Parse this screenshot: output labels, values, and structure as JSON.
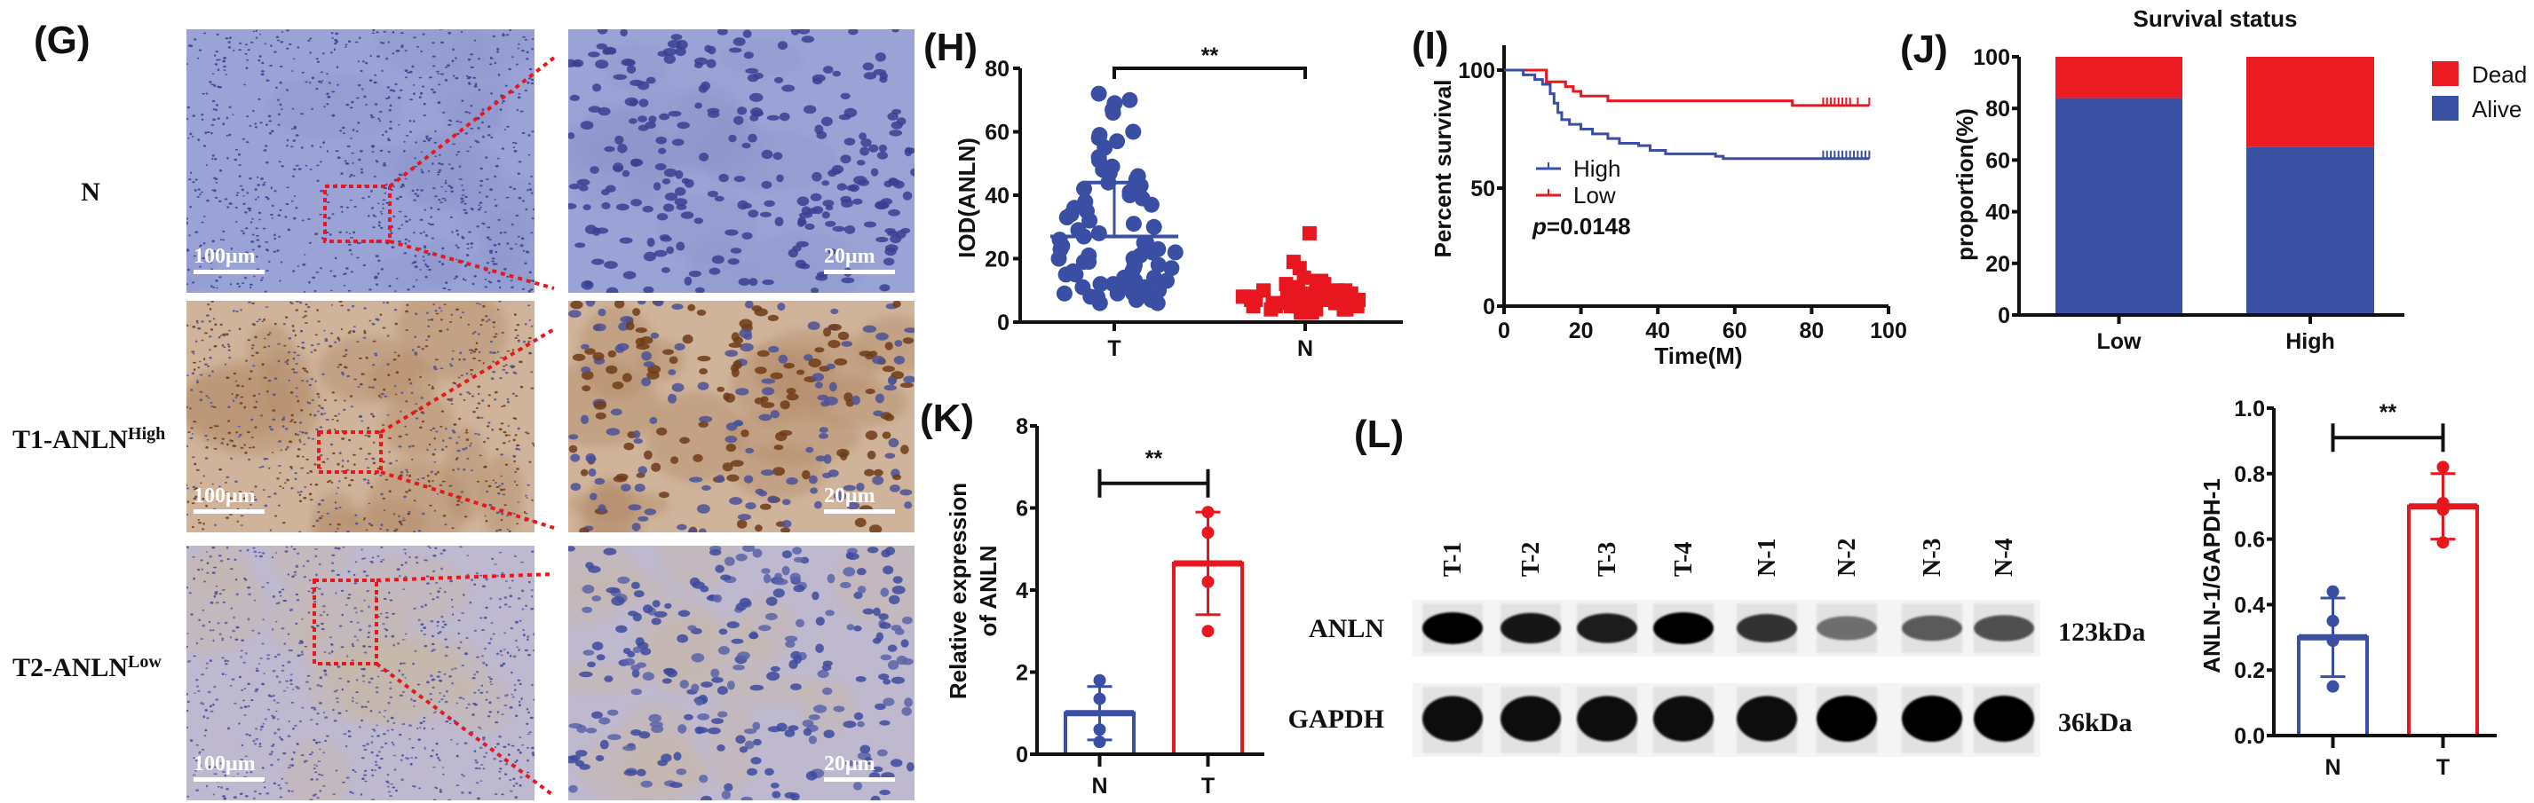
{
  "figure": {
    "G": {
      "label": "(G)",
      "rows": [
        {
          "label": "N",
          "sup": "",
          "tint": "#9ba3d6",
          "nucleus": "#3a3f92",
          "nucleus2": "#3a3f92",
          "stroma": "#8e96cc"
        },
        {
          "label": "T1-ANLN",
          "sup": "High",
          "tint": "#cfb39a",
          "nucleus": "#6e3b17",
          "nucleus2": "#4b5199",
          "stroma": "#b48c6b"
        },
        {
          "label": "T2-ANLN",
          "sup": "Low",
          "tint": "#bfb9cf",
          "nucleus": "#3d4a9e",
          "nucleus2": "#5a63a8",
          "stroma": "#c8b7a8"
        }
      ],
      "scale_low": "100μm",
      "scale_high": "20μm",
      "zoom_color": "#e8171f"
    },
    "H": {
      "label": "(H)"
    },
    "I": {
      "label": "(I)"
    },
    "J": {
      "label": "(J)"
    },
    "K": {
      "label": "(K)"
    },
    "L": {
      "label": "(L)",
      "lanes": [
        "T-1",
        "T-2",
        "T-3",
        "T-4",
        "N-1",
        "N-2",
        "N-3",
        "N-4"
      ],
      "bands": [
        {
          "name": "ANLN",
          "size": "123kDa",
          "intensity": [
            1.0,
            0.9,
            0.85,
            1.0,
            0.75,
            0.45,
            0.55,
            0.6
          ]
        },
        {
          "name": "GAPDH",
          "size": "36kDa",
          "intensity": [
            0.95,
            0.95,
            0.95,
            0.95,
            0.95,
            1.0,
            1.0,
            1.0
          ]
        }
      ]
    }
  },
  "colors": {
    "blue": "#3a4fa3",
    "red": "#e8171f",
    "black": "#111111"
  },
  "chart_data": [
    {
      "panel": "H",
      "type": "scatter",
      "ylabel": "IOD(ANLN)",
      "categories": [
        "T",
        "N"
      ],
      "ylim": [
        0,
        80
      ],
      "yticks": [
        "0",
        "20",
        "40",
        "60",
        "80"
      ],
      "significance": "**",
      "series": [
        {
          "name": "T",
          "color": "#3a4fa3",
          "mean": 27,
          "sd_upper": 44,
          "values": [
            72,
            70,
            69,
            67,
            66,
            60,
            59,
            58,
            57,
            55,
            52,
            51,
            49,
            48,
            47,
            46,
            45,
            44,
            43,
            42,
            41,
            40,
            39,
            38,
            37,
            36,
            35,
            34,
            33,
            32,
            31,
            30,
            29,
            28,
            27,
            26,
            25,
            25,
            24,
            23,
            23,
            22,
            22,
            21,
            21,
            20,
            20,
            19,
            19,
            18,
            18,
            17,
            17,
            16,
            16,
            15,
            15,
            14,
            14,
            13,
            13,
            12,
            12,
            12,
            11,
            11,
            11,
            10,
            10,
            10,
            9,
            9,
            9,
            8,
            8,
            8,
            7,
            7,
            6,
            6
          ]
        },
        {
          "name": "N",
          "color": "#e8171f",
          "mean": 7,
          "values": [
            28,
            19,
            17,
            14,
            13,
            13,
            12,
            12,
            11,
            11,
            11,
            10,
            10,
            10,
            10,
            9,
            9,
            9,
            9,
            9,
            9,
            8,
            8,
            8,
            8,
            8,
            8,
            8,
            8,
            7,
            7,
            7,
            7,
            7,
            7,
            7,
            7,
            7,
            6,
            6,
            6,
            6,
            6,
            6,
            6,
            6,
            6,
            5,
            5,
            5,
            5,
            5,
            5,
            5,
            5,
            4,
            4,
            4,
            4,
            4,
            4,
            3,
            3,
            3
          ]
        }
      ]
    },
    {
      "panel": "I",
      "type": "line",
      "xlabel": "Time(M)",
      "ylabel": "Percent survival",
      "xlim": [
        0,
        100
      ],
      "ylim": [
        0,
        100
      ],
      "xticks": [
        "0",
        "20",
        "40",
        "60",
        "80",
        "100"
      ],
      "yticks": [
        "0",
        "50",
        "100"
      ],
      "p_prefix": "p",
      "p_value": "=0.0148",
      "series": [
        {
          "name": "High",
          "color": "#3a4fa3",
          "steps": [
            [
              0,
              100
            ],
            [
              5,
              98
            ],
            [
              8,
              96
            ],
            [
              10,
              94
            ],
            [
              12,
              90
            ],
            [
              13,
              86
            ],
            [
              14,
              82
            ],
            [
              15,
              79
            ],
            [
              17,
              77
            ],
            [
              20,
              75
            ],
            [
              23,
              73
            ],
            [
              27,
              71
            ],
            [
              30,
              69
            ],
            [
              35,
              68
            ],
            [
              38,
              66
            ],
            [
              42,
              64.5
            ],
            [
              55,
              63.5
            ],
            [
              57,
              62.5
            ],
            [
              95,
              62.5
            ]
          ],
          "censored": [
            83,
            84,
            85,
            86,
            87,
            88,
            89,
            90,
            91,
            92,
            93,
            94,
            95
          ]
        },
        {
          "name": "Low",
          "color": "#e8171f",
          "steps": [
            [
              0,
              100
            ],
            [
              11,
              95
            ],
            [
              16,
              93
            ],
            [
              18,
              91
            ],
            [
              20,
              89
            ],
            [
              27,
              87
            ],
            [
              75,
              85
            ],
            [
              95,
              85
            ]
          ],
          "censored": [
            83,
            84,
            85,
            86,
            87,
            88,
            89,
            90,
            92,
            95
          ]
        }
      ]
    },
    {
      "panel": "J",
      "type": "bar",
      "stacked": true,
      "title": "Survival status",
      "ylabel": "proportion(%)",
      "categories": [
        "Low",
        "High"
      ],
      "ylim": [
        0,
        100
      ],
      "yticks": [
        "0",
        "20",
        "40",
        "60",
        "80",
        "100"
      ],
      "series": [
        {
          "name": "Alive",
          "color": "#3a51a3",
          "values": [
            84,
            65
          ]
        },
        {
          "name": "Dead",
          "color": "#ec1c24",
          "values": [
            16,
            35
          ]
        }
      ],
      "legend": "right"
    },
    {
      "panel": "K",
      "type": "bar",
      "ylabel": [
        "Relative expression",
        "of ANLN"
      ],
      "categories": [
        "N",
        "T"
      ],
      "ylim": [
        0,
        8
      ],
      "yticks": [
        "0",
        "2",
        "4",
        "6",
        "8"
      ],
      "significance": "**",
      "series": [
        {
          "name": "N",
          "color": "#3a4fa3",
          "mean": 1.0,
          "sd": 0.65,
          "points": [
            0.3,
            0.6,
            1.35,
            1.8
          ]
        },
        {
          "name": "T",
          "color": "#e8171f",
          "mean": 4.65,
          "sd": 1.25,
          "points": [
            3.0,
            4.2,
            5.4,
            5.9
          ]
        }
      ]
    },
    {
      "panel": "L",
      "type": "bar",
      "ylabel": "ANLN-1/GAPDH-1",
      "categories": [
        "N",
        "T"
      ],
      "ylim": [
        0,
        1.0
      ],
      "yticks": [
        "0.0",
        "0.2",
        "0.4",
        "0.6",
        "0.8",
        "1.0"
      ],
      "significance": "**",
      "series": [
        {
          "name": "N",
          "color": "#3a4fa3",
          "mean": 0.3,
          "sd": 0.12,
          "points": [
            0.15,
            0.29,
            0.35,
            0.44
          ]
        },
        {
          "name": "T",
          "color": "#e8171f",
          "mean": 0.7,
          "sd": 0.1,
          "points": [
            0.59,
            0.69,
            0.71,
            0.82
          ]
        }
      ]
    }
  ]
}
